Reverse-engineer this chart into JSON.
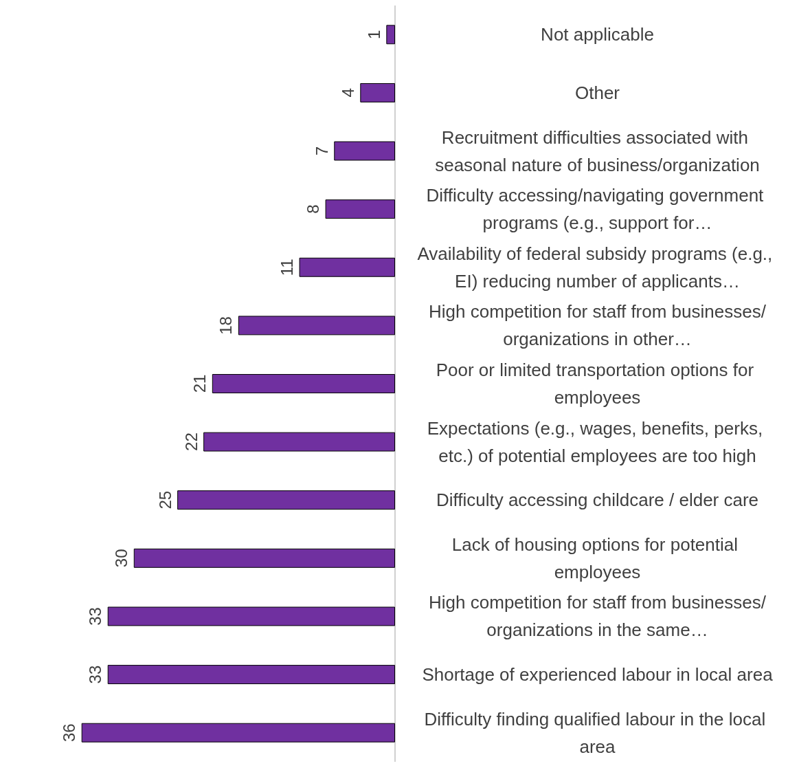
{
  "chart_data": {
    "type": "bar",
    "orientation": "horizontal",
    "categories": [
      "Not applicable",
      "Other",
      "Recruitment difficulties associated with seasonal nature of business/organization",
      "Difficulty accessing/navigating government programs (e.g., support for…",
      "Availability of federal subsidy programs (e.g., EI) reducing number of applicants…",
      "High competition for staff from businesses/organizations in other…",
      "Poor or limited transportation options for employees",
      "Expectations (e.g., wages, benefits, perks, etc.) of potential employees are too high",
      "Difficulty accessing childcare / elder care",
      "Lack of housing options for potential employees",
      "High competition for staff from businesses/organizations in the same…",
      "Shortage of experienced labour in local area",
      "Difficulty finding qualified labour in the local area"
    ],
    "values": [
      1,
      4,
      7,
      8,
      11,
      18,
      21,
      22,
      25,
      30,
      33,
      33,
      36
    ],
    "color": "#7030a0",
    "data_labels": true,
    "grid": false,
    "tick_labels": "y"
  }
}
